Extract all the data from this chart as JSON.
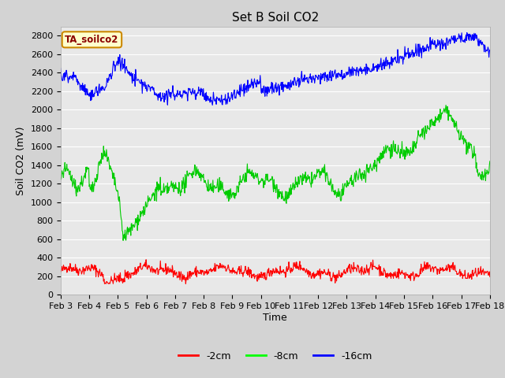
{
  "title": "Set B Soil CO2",
  "ylabel": "Soil CO2 (mV)",
  "xlabel": "Time",
  "xlim": [
    0,
    15
  ],
  "ylim": [
    0,
    2900
  ],
  "yticks": [
    0,
    200,
    400,
    600,
    800,
    1000,
    1200,
    1400,
    1600,
    1800,
    2000,
    2200,
    2400,
    2600,
    2800
  ],
  "xtick_labels": [
    "Feb 3",
    "Feb 4",
    "Feb 5",
    "Feb 6",
    "Feb 7",
    "Feb 8",
    "Feb 9",
    "Feb 10",
    "Feb 11",
    "Feb 12",
    "Feb 13",
    "Feb 14",
    "Feb 15",
    "Feb 16",
    "Feb 17",
    "Feb 18"
  ],
  "legend_label_box": "TA_soilco2",
  "legend_labels": [
    "-2cm",
    "-8cm",
    "-16cm"
  ],
  "legend_colors": [
    "#ff0000",
    "#00ff00",
    "#0000ff"
  ],
  "line_colors": [
    "#ff0000",
    "#00cc00",
    "#0000ff"
  ],
  "background_color": "#d3d3d3",
  "plot_bg_color": "#e8e8e8",
  "title_fontsize": 11,
  "axis_label_fontsize": 9,
  "tick_fontsize": 8
}
